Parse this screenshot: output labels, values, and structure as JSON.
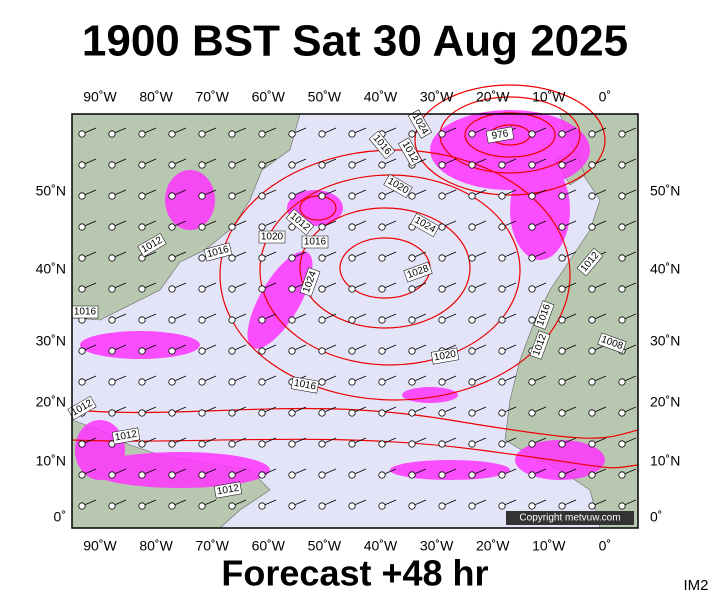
{
  "header": {
    "title": "1900 BST Sat 30 Aug 2025"
  },
  "map": {
    "lon_labels": [
      "90˚W",
      "80˚W",
      "70˚W",
      "60˚W",
      "50˚W",
      "40˚W",
      "30˚W",
      "20˚W",
      "10˚W",
      "0˚"
    ],
    "lat_labels": [
      "50˚N",
      "40˚N",
      "30˚N",
      "20˚N",
      "10˚N",
      "0˚"
    ],
    "isobar_labels": [
      "976",
      "1024",
      "1012",
      "1016",
      "1020",
      "1024",
      "1028",
      "1016",
      "1012",
      "1020",
      "1016",
      "1024",
      "1012",
      "1012",
      "1016",
      "1012",
      "1008",
      "1020",
      "1016",
      "1012",
      "1012",
      "1012",
      "1016"
    ],
    "copyright": "Copyright metvuw.com"
  },
  "footer": {
    "forecast": "Forecast +48 hr",
    "code": "IM2"
  }
}
